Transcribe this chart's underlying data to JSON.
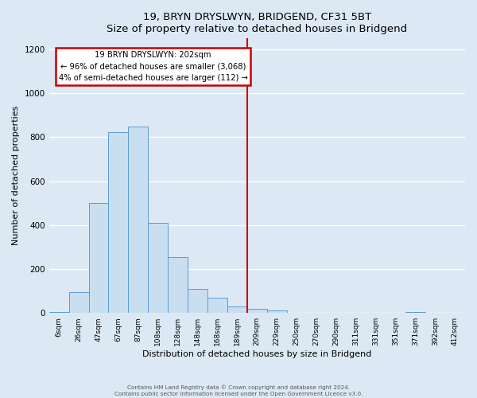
{
  "title": "19, BRYN DRYSLWYN, BRIDGEND, CF31 5BT",
  "subtitle": "Size of property relative to detached houses in Bridgend",
  "xlabel": "Distribution of detached houses by size in Bridgend",
  "ylabel": "Number of detached properties",
  "bar_labels": [
    "6sqm",
    "26sqm",
    "47sqm",
    "67sqm",
    "87sqm",
    "108sqm",
    "128sqm",
    "148sqm",
    "168sqm",
    "189sqm",
    "209sqm",
    "229sqm",
    "250sqm",
    "270sqm",
    "290sqm",
    "311sqm",
    "331sqm",
    "351sqm",
    "371sqm",
    "392sqm",
    "412sqm"
  ],
  "bar_values": [
    5,
    95,
    500,
    825,
    850,
    410,
    255,
    110,
    70,
    30,
    18,
    10,
    0,
    0,
    0,
    0,
    0,
    0,
    5,
    0,
    0
  ],
  "bar_color": "#c9dff0",
  "bar_edge_color": "#5b9bd5",
  "ylim": [
    0,
    1250
  ],
  "yticks": [
    0,
    200,
    400,
    600,
    800,
    1000,
    1200
  ],
  "vline_x": 9.5,
  "annotation_title": "19 BRYN DRYSLWYN: 202sqm",
  "annotation_line1": "← 96% of detached houses are smaller (3,068)",
  "annotation_line2": "4% of semi-detached houses are larger (112) →",
  "annotation_box_color": "#ffffff",
  "annotation_border_color": "#cc0000",
  "vline_color": "#cc0000",
  "footer1": "Contains HM Land Registry data © Crown copyright and database right 2024.",
  "footer2": "Contains public sector information licensed under the Open Government Licence v3.0.",
  "bg_color": "#dce9f5",
  "grid_color": "#ffffff"
}
